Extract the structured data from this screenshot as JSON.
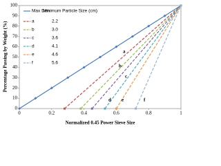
{
  "chart_data": {
    "type": "line",
    "xlabel": "Normalized 0.45 Power Sieve Size",
    "ylabel": "Percentage Passing by Weight (%)",
    "legend_header": "Minimum Particle Size (cm)",
    "xlim": [
      0,
      1
    ],
    "ylim": [
      0,
      100
    ],
    "xticks": [
      0,
      0.2,
      0.4,
      0.6,
      0.8,
      1
    ],
    "yticks": [
      0,
      10,
      20,
      30,
      40,
      50,
      60,
      70,
      80,
      90,
      100
    ],
    "series": [
      {
        "name": "Max Den",
        "color": "#4a7ebb",
        "dash": false,
        "x": [
          0,
          0.1,
          0.2,
          0.3,
          0.4,
          0.5,
          0.6,
          0.7,
          0.8,
          0.9,
          1
        ],
        "values": [
          0,
          10,
          20,
          30,
          40,
          50,
          60,
          70,
          80,
          90,
          100
        ]
      },
      {
        "name": "a",
        "min_size": "2.2",
        "color": "#c0504d",
        "dash": true,
        "x": [
          0.28,
          1
        ],
        "values": [
          0,
          100
        ]
      },
      {
        "name": "b",
        "min_size": "3.0",
        "color": "#9bbb59",
        "dash": true,
        "x": [
          0.38,
          1
        ],
        "values": [
          0,
          100
        ]
      },
      {
        "name": "c",
        "min_size": "3.6",
        "color": "#8064a2",
        "dash": true,
        "x": [
          0.45,
          1
        ],
        "values": [
          0,
          100
        ]
      },
      {
        "name": "d",
        "min_size": "4.1",
        "color": "#4bacc6",
        "dash": true,
        "x": [
          0.53,
          1
        ],
        "values": [
          0,
          100
        ]
      },
      {
        "name": "e",
        "min_size": "4.6",
        "color": "#f79646",
        "dash": true,
        "x": [
          0.6,
          1
        ],
        "values": [
          0,
          100
        ]
      },
      {
        "name": "f",
        "min_size": "5.6",
        "color": "#95b3d7",
        "dash": true,
        "x": [
          0.72,
          1
        ],
        "values": [
          0,
          100
        ]
      }
    ]
  }
}
